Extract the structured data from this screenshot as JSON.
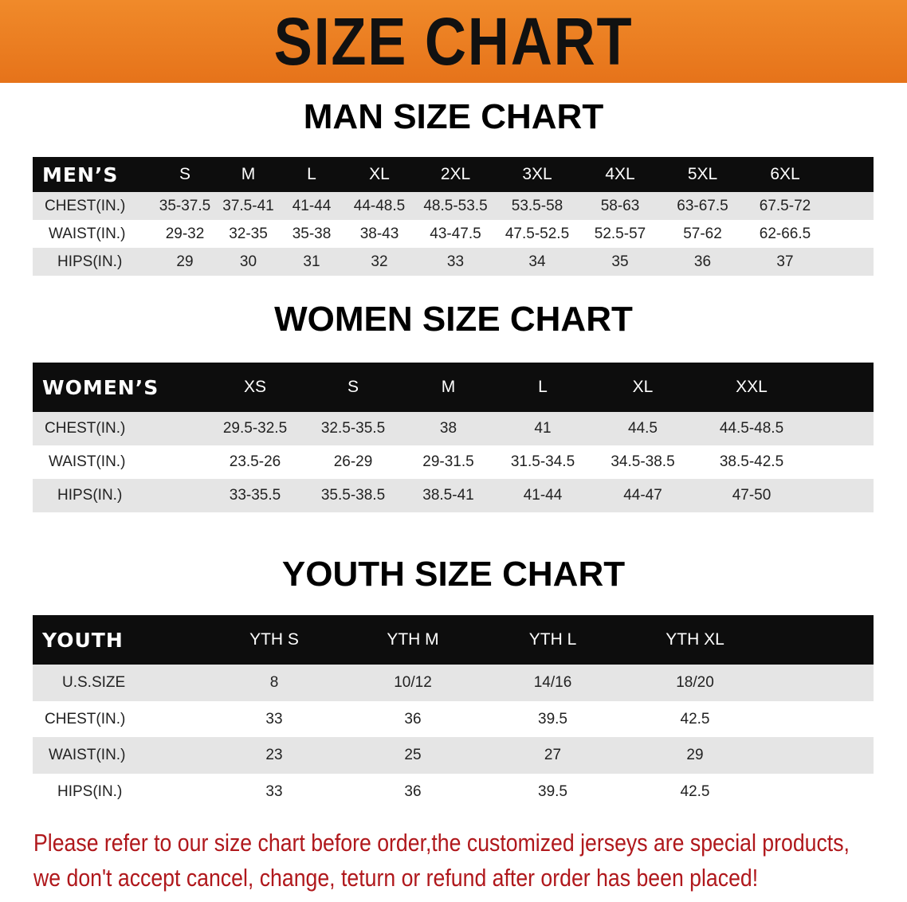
{
  "banner": {
    "title": "SIZE CHART",
    "color": "#e87a1f"
  },
  "tables": {
    "men": {
      "title": "MAN SIZE CHART",
      "header": "MEN’S",
      "sizes": [
        "S",
        "M",
        "L",
        "XL",
        "2XL",
        "3XL",
        "4XL",
        "5XL",
        "6XL"
      ],
      "rows": [
        {
          "label": "CHEST(IN.)",
          "values": [
            "35-37.5",
            "37.5-41",
            "41-44",
            "44-48.5",
            "48.5-53.5",
            "53.5-58",
            "58-63",
            "63-67.5",
            "67.5-72"
          ]
        },
        {
          "label": "WAIST(IN.)",
          "values": [
            "29-32",
            "32-35",
            "35-38",
            "38-43",
            "43-47.5",
            "47.5-52.5",
            "52.5-57",
            "57-62",
            "62-66.5"
          ]
        },
        {
          "label": "HIPS(IN.)",
          "values": [
            "29",
            "30",
            "31",
            "32",
            "33",
            "34",
            "35",
            "36",
            "37"
          ]
        }
      ]
    },
    "women": {
      "title": "WOMEN SIZE CHART",
      "header": "WOMEN’S",
      "sizes": [
        "XS",
        "S",
        "M",
        "L",
        "XL",
        "XXL"
      ],
      "rows": [
        {
          "label": "CHEST(IN.)",
          "values": [
            "29.5-32.5",
            "32.5-35.5",
            "38",
            "41",
            "44.5",
            "44.5-48.5"
          ]
        },
        {
          "label": "WAIST(IN.)",
          "values": [
            "23.5-26",
            "26-29",
            "29-31.5",
            "31.5-34.5",
            "34.5-38.5",
            "38.5-42.5"
          ]
        },
        {
          "label": "HIPS(IN.)",
          "values": [
            "33-35.5",
            "35.5-38.5",
            "38.5-41",
            "41-44",
            "44-47",
            "47-50"
          ]
        }
      ]
    },
    "youth": {
      "title": "YOUTH SIZE CHART",
      "header": "YOUTH",
      "sizes": [
        "YTH S",
        "YTH M",
        "YTH L",
        "YTH XL"
      ],
      "rows": [
        {
          "label": "U.S.SIZE",
          "values": [
            "8",
            "10/12",
            "14/16",
            "18/20"
          ]
        },
        {
          "label": "CHEST(IN.)",
          "values": [
            "33",
            "36",
            "39.5",
            "42.5"
          ]
        },
        {
          "label": "WAIST(IN.)",
          "values": [
            "23",
            "25",
            "27",
            "29"
          ]
        },
        {
          "label": "HIPS(IN.)",
          "values": [
            "33",
            "36",
            "39.5",
            "42.5"
          ]
        }
      ]
    }
  },
  "note": {
    "line1": "Please refer to our size chart before order,the customized jerseys are special products,",
    "line2": "we don't accept cancel, change, teturn or refund after order has been placed!",
    "color": "#b0181c"
  }
}
